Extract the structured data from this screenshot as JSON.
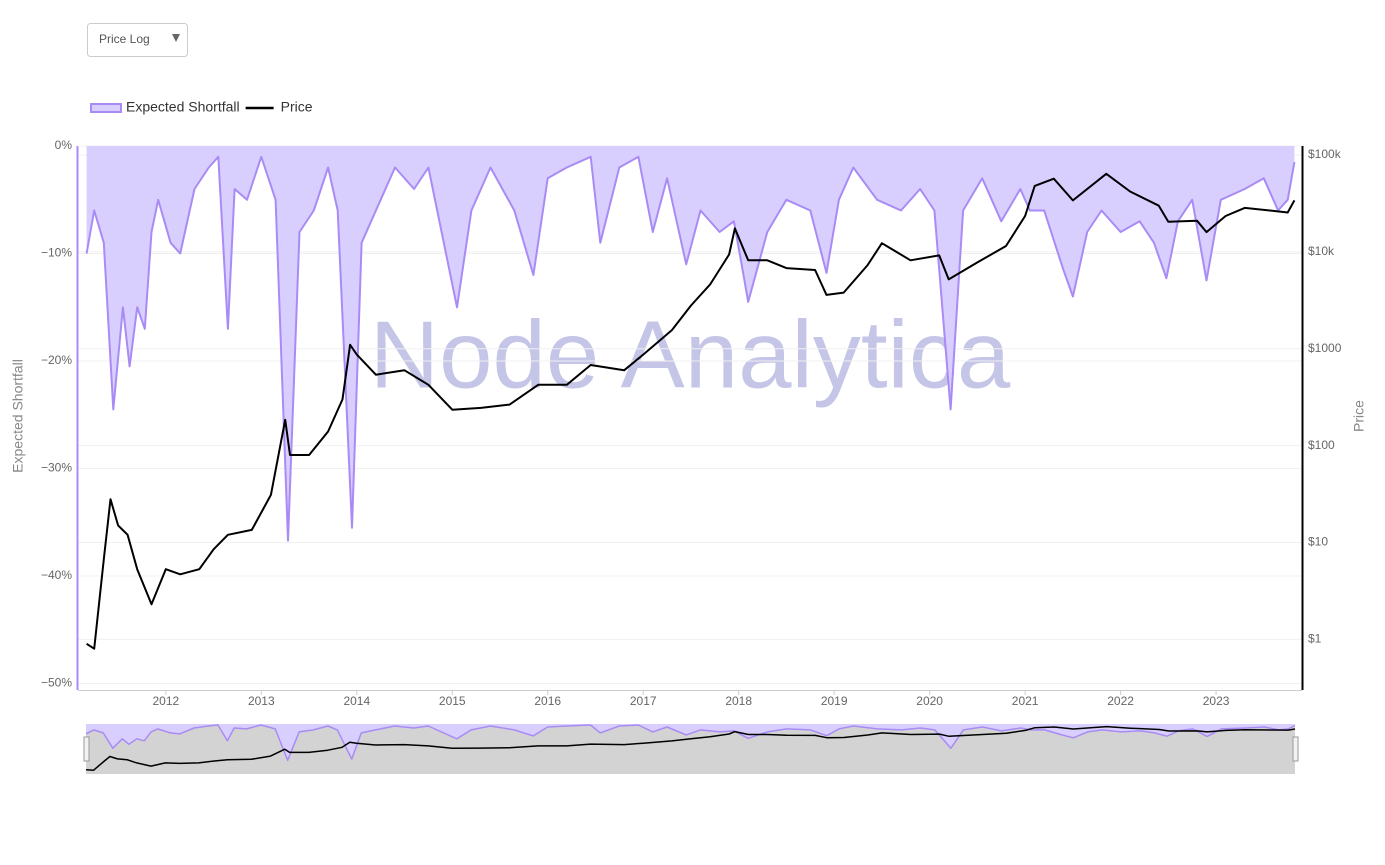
{
  "dropdown": "Price Log",
  "chart_data": {
    "type": "line",
    "watermark": "Node Analytica",
    "y_label": "Expected Shortfall",
    "y2_label": "Price",
    "legend": "top-left",
    "grid": true,
    "xlim": [
      2011.08,
      2023.9
    ],
    "xticks": [
      2012,
      2013,
      2014,
      2015,
      2016,
      2017,
      2018,
      2019,
      2020,
      2021,
      2022,
      2023
    ],
    "ylim": [
      -50.6,
      0
    ],
    "yticks": [
      {
        "value": 0,
        "label": "0%"
      },
      {
        "value": -10,
        "label": "−10%"
      },
      {
        "value": -20,
        "label": "−20%"
      },
      {
        "value": -30,
        "label": "−30%"
      },
      {
        "value": -40,
        "label": "−40%"
      },
      {
        "value": -50,
        "label": "−50%"
      }
    ],
    "y2_log": true,
    "y2lim": [
      0.3,
      124000
    ],
    "y2ticks": [
      {
        "value": 1,
        "label": "$1"
      },
      {
        "value": 10,
        "label": "$10"
      },
      {
        "value": 100,
        "label": "$100"
      },
      {
        "value": 1000,
        "label": "$1000"
      },
      {
        "value": 10000,
        "label": "$10k"
      },
      {
        "value": 100000,
        "label": "$100k"
      }
    ],
    "series": [
      {
        "name": "Expected Shortfall",
        "type": "area",
        "color": "#a98bf5",
        "fill": "#d9cfff",
        "x": [
          2011.17,
          2011.25,
          2011.35,
          2011.45,
          2011.55,
          2011.62,
          2011.7,
          2011.78,
          2011.85,
          2011.92,
          2012.05,
          2012.15,
          2012.3,
          2012.45,
          2012.55,
          2012.65,
          2012.72,
          2012.85,
          2013.0,
          2013.15,
          2013.28,
          2013.4,
          2013.55,
          2013.7,
          2013.8,
          2013.95,
          2014.05,
          2014.2,
          2014.4,
          2014.6,
          2014.75,
          2015.05,
          2015.2,
          2015.4,
          2015.65,
          2015.85,
          2016.0,
          2016.2,
          2016.45,
          2016.55,
          2016.75,
          2016.95,
          2017.1,
          2017.25,
          2017.45,
          2017.6,
          2017.8,
          2017.95,
          2018.05,
          2018.1,
          2018.3,
          2018.5,
          2018.75,
          2018.92,
          2019.05,
          2019.2,
          2019.45,
          2019.7,
          2019.9,
          2020.05,
          2020.22,
          2020.35,
          2020.55,
          2020.75,
          2020.95,
          2021.05,
          2021.2,
          2021.4,
          2021.5,
          2021.65,
          2021.8,
          2022.0,
          2022.2,
          2022.35,
          2022.48,
          2022.6,
          2022.75,
          2022.9,
          2023.05,
          2023.3,
          2023.5,
          2023.65,
          2023.75,
          2023.82
        ],
        "values": [
          -10,
          -6,
          -9,
          -24.5,
          -15,
          -20.5,
          -15,
          -17,
          -8,
          -5,
          -9,
          -10,
          -4,
          -2,
          -1,
          -17,
          -4,
          -5,
          -1,
          -5,
          -36.7,
          -8,
          -6,
          -2,
          -6,
          -35.5,
          -9,
          -6,
          -2,
          -4,
          -2,
          -15,
          -6,
          -2,
          -6,
          -12,
          -3,
          -2,
          -1,
          -9,
          -2,
          -1,
          -8,
          -3,
          -11,
          -6,
          -8,
          -7,
          -12,
          -14.5,
          -8,
          -5,
          -6,
          -11.8,
          -5,
          -2,
          -5,
          -6,
          -4,
          -6,
          -24.5,
          -6,
          -3,
          -7,
          -4,
          -6,
          -6,
          -11.5,
          -14,
          -8,
          -6,
          -8,
          -7,
          -9,
          -12.3,
          -7,
          -5,
          -12.5,
          -5,
          -4,
          -3,
          -6,
          -5,
          -1.5
        ]
      },
      {
        "name": "Price",
        "type": "line",
        "axis": "y2",
        "color": "#000000",
        "x": [
          2011.17,
          2011.25,
          2011.35,
          2011.42,
          2011.5,
          2011.6,
          2011.7,
          2011.85,
          2012.0,
          2012.15,
          2012.35,
          2012.5,
          2012.65,
          2012.9,
          2013.1,
          2013.25,
          2013.3,
          2013.5,
          2013.7,
          2013.85,
          2013.93,
          2014.0,
          2014.2,
          2014.5,
          2014.75,
          2015.0,
          2015.3,
          2015.6,
          2015.9,
          2016.2,
          2016.45,
          2016.8,
          2017.0,
          2017.3,
          2017.5,
          2017.7,
          2017.9,
          2017.96,
          2018.1,
          2018.3,
          2018.5,
          2018.8,
          2018.92,
          2019.1,
          2019.35,
          2019.5,
          2019.8,
          2020.1,
          2020.2,
          2020.5,
          2020.8,
          2021.0,
          2021.1,
          2021.3,
          2021.5,
          2021.85,
          2022.1,
          2022.4,
          2022.5,
          2022.8,
          2022.9,
          2023.1,
          2023.3,
          2023.6,
          2023.75,
          2023.82
        ],
        "values": [
          0.9,
          0.8,
          6.7,
          28,
          15,
          12,
          5.3,
          2.3,
          5.3,
          4.7,
          5.3,
          8.5,
          12,
          13.5,
          31,
          185,
          80,
          80,
          140,
          300,
          1100,
          870,
          540,
          600,
          425,
          235,
          245,
          265,
          425,
          425,
          680,
          600,
          870,
          1560,
          2800,
          4600,
          9400,
          17500,
          8200,
          8200,
          6800,
          6500,
          3600,
          3800,
          7300,
          12300,
          8200,
          9200,
          5200,
          7800,
          11500,
          23500,
          48000,
          57000,
          34000,
          64000,
          42000,
          30000,
          20500,
          21000,
          16000,
          23500,
          28500,
          26500,
          25500,
          34000
        ]
      }
    ]
  }
}
